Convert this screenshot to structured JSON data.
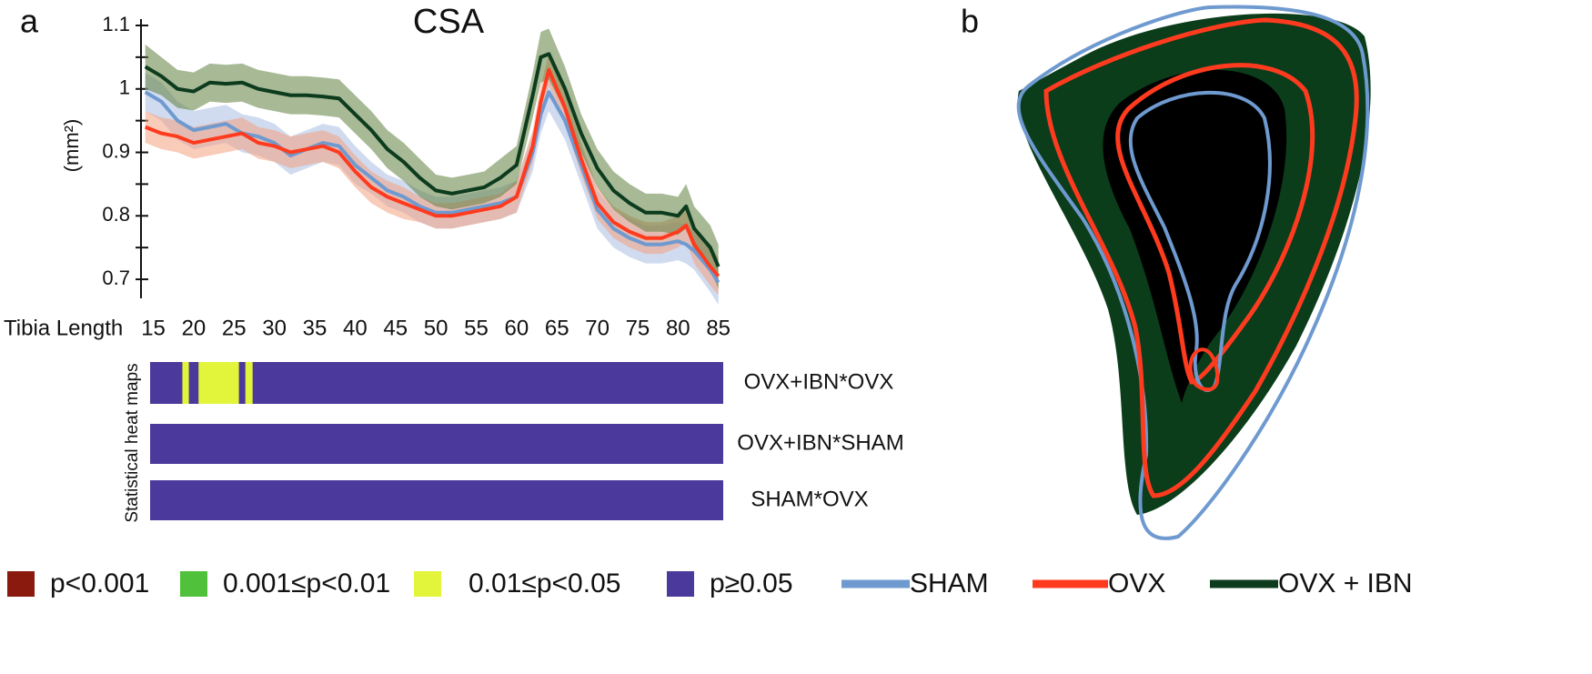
{
  "chart_data": {
    "type": "line",
    "title": "CSA",
    "panel_labels": [
      "a",
      "b"
    ],
    "x_label": "Tibia Length",
    "y_label": "(mm²)",
    "x": [
      14,
      16,
      18,
      20,
      22,
      24,
      26,
      28,
      30,
      32,
      34,
      36,
      38,
      40,
      42,
      44,
      46,
      48,
      50,
      52,
      54,
      56,
      58,
      60,
      62,
      63,
      64,
      66,
      68,
      70,
      72,
      74,
      76,
      78,
      80,
      81,
      82,
      84,
      85
    ],
    "series": [
      {
        "name": "SHAM",
        "color": "#6e9ad0",
        "band_color": "#a9bde3",
        "values": [
          0.995,
          0.98,
          0.95,
          0.935,
          0.94,
          0.945,
          0.93,
          0.925,
          0.915,
          0.895,
          0.905,
          0.915,
          0.91,
          0.88,
          0.86,
          0.84,
          0.83,
          0.815,
          0.805,
          0.805,
          0.81,
          0.815,
          0.82,
          0.83,
          0.9,
          0.96,
          0.995,
          0.95,
          0.88,
          0.81,
          0.78,
          0.765,
          0.755,
          0.755,
          0.76,
          0.755,
          0.745,
          0.715,
          0.695
        ],
        "error": [
          0.03,
          0.03,
          0.03,
          0.03,
          0.03,
          0.03,
          0.03,
          0.03,
          0.03,
          0.03,
          0.03,
          0.03,
          0.03,
          0.03,
          0.025,
          0.025,
          0.025,
          0.025,
          0.025,
          0.025,
          0.025,
          0.025,
          0.025,
          0.025,
          0.03,
          0.03,
          0.03,
          0.03,
          0.03,
          0.03,
          0.03,
          0.03,
          0.03,
          0.03,
          0.03,
          0.03,
          0.03,
          0.035,
          0.035
        ]
      },
      {
        "name": "OVX",
        "color": "#ff3b1f",
        "band_color": "#f4a080",
        "values": [
          0.94,
          0.93,
          0.925,
          0.915,
          0.92,
          0.925,
          0.93,
          0.915,
          0.91,
          0.9,
          0.905,
          0.91,
          0.9,
          0.87,
          0.845,
          0.83,
          0.82,
          0.81,
          0.8,
          0.8,
          0.805,
          0.81,
          0.815,
          0.83,
          0.91,
          0.98,
          1.03,
          0.97,
          0.89,
          0.82,
          0.79,
          0.775,
          0.765,
          0.765,
          0.775,
          0.785,
          0.755,
          0.72,
          0.705
        ],
        "error": [
          0.025,
          0.025,
          0.025,
          0.025,
          0.025,
          0.025,
          0.025,
          0.025,
          0.025,
          0.025,
          0.025,
          0.025,
          0.025,
          0.025,
          0.025,
          0.025,
          0.025,
          0.02,
          0.02,
          0.02,
          0.02,
          0.02,
          0.02,
          0.025,
          0.025,
          0.025,
          0.025,
          0.025,
          0.025,
          0.025,
          0.025,
          0.025,
          0.025,
          0.025,
          0.025,
          0.025,
          0.03,
          0.03,
          0.03
        ]
      },
      {
        "name": "OVX + IBN",
        "color": "#0d3b1e",
        "band_color": "#5e7f3e",
        "values": [
          1.035,
          1.02,
          1.0,
          0.996,
          1.01,
          1.008,
          1.01,
          1.0,
          0.995,
          0.99,
          0.99,
          0.988,
          0.985,
          0.96,
          0.935,
          0.905,
          0.885,
          0.86,
          0.84,
          0.835,
          0.84,
          0.845,
          0.86,
          0.88,
          0.99,
          1.05,
          1.055,
          1.0,
          0.93,
          0.875,
          0.84,
          0.82,
          0.805,
          0.805,
          0.8,
          0.815,
          0.78,
          0.75,
          0.72
        ],
        "error": [
          0.035,
          0.03,
          0.03,
          0.03,
          0.03,
          0.03,
          0.03,
          0.03,
          0.03,
          0.03,
          0.03,
          0.03,
          0.03,
          0.03,
          0.03,
          0.03,
          0.03,
          0.03,
          0.025,
          0.025,
          0.025,
          0.025,
          0.03,
          0.03,
          0.035,
          0.04,
          0.04,
          0.035,
          0.03,
          0.03,
          0.03,
          0.03,
          0.03,
          0.03,
          0.03,
          0.035,
          0.035,
          0.035,
          0.035
        ]
      }
    ],
    "xlim": [
      14.6,
      85.6
    ],
    "xticks": [
      15,
      20,
      25,
      30,
      35,
      40,
      45,
      50,
      55,
      60,
      65,
      70,
      75,
      80,
      85
    ],
    "ylim": [
      0.67,
      1.11
    ],
    "yticks": [
      0.7,
      0.8,
      0.9,
      1.0,
      1.1
    ],
    "yminor": [
      0.75,
      0.85,
      0.95,
      1.05
    ],
    "significance": [
      {
        "label": "p<0.001",
        "color": "#8b1a0e"
      },
      {
        "label": "0.001≤p<0.01",
        "color": "#4fc13a"
      },
      {
        "label": "0.01≤p<0.05",
        "color": "#e2f53a"
      },
      {
        "label": "p≥0.05",
        "color": "#4b3a9b"
      }
    ],
    "heatmaps": {
      "title": "Statistical heat maps",
      "base_level": 3,
      "rows": [
        {
          "name": "OVX+IBN*OVX",
          "highlights": [
            {
              "start": 18.6,
              "end": 19.4,
              "level": 2
            },
            {
              "start": 20.6,
              "end": 25.6,
              "level": 2
            },
            {
              "start": 26.4,
              "end": 27.3,
              "level": 2
            }
          ]
        },
        {
          "name": "OVX+IBN*SHAM",
          "highlights": []
        },
        {
          "name": "SHAM*OVX",
          "highlights": []
        }
      ]
    }
  }
}
